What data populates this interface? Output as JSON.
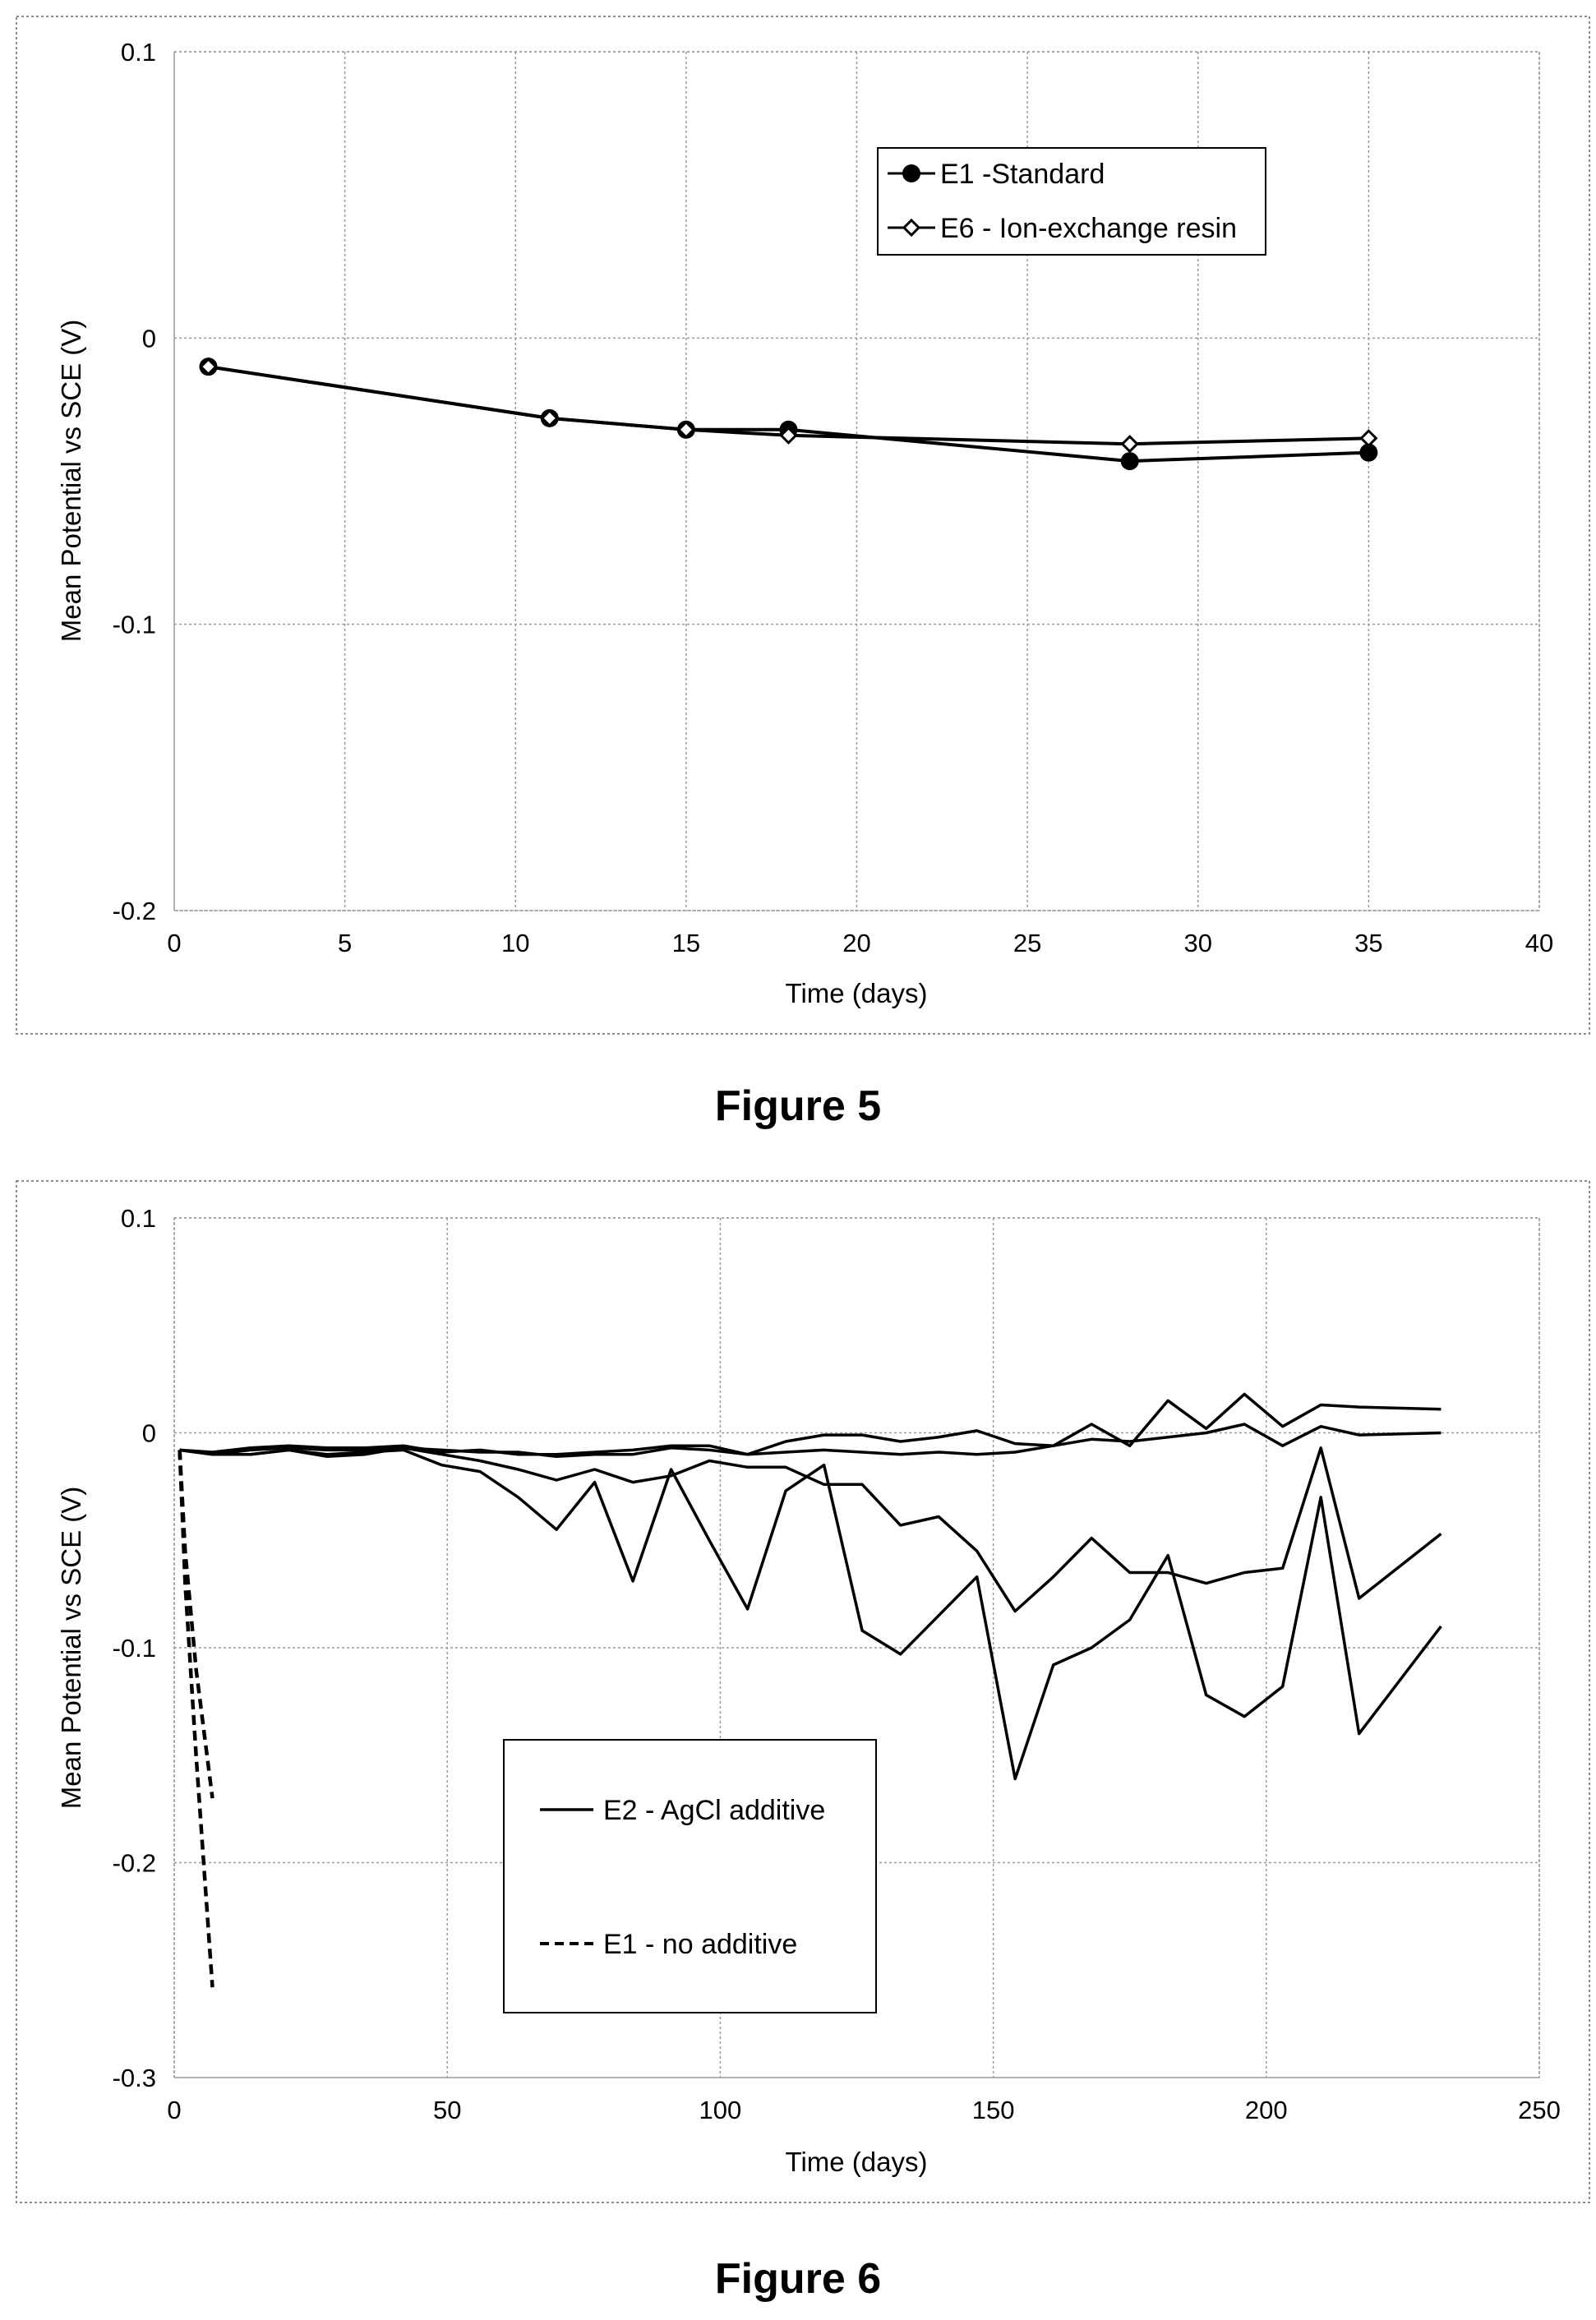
{
  "figures": [
    {
      "caption": "Figure 5"
    },
    {
      "caption": "Figure 6"
    }
  ],
  "chart_data": [
    {
      "type": "line",
      "xlabel": "Time (days)",
      "ylabel": "Mean Potential vs SCE (V)",
      "xlim": [
        0,
        40
      ],
      "ylim": [
        -0.2,
        0.1
      ],
      "xticks": [
        0,
        5,
        10,
        15,
        20,
        25,
        30,
        35,
        40
      ],
      "yticks": [
        0.1,
        0,
        -0.1,
        -0.2
      ],
      "xtick_labels": [
        "0",
        "5",
        "10",
        "15",
        "20",
        "25",
        "30",
        "35",
        "40"
      ],
      "ytick_labels": [
        "0.1",
        "0",
        "-0.1",
        "-0.2"
      ],
      "grid": true,
      "legend_position": "top-right",
      "series": [
        {
          "name": "E1 -Standard",
          "marker": "filled-circle",
          "color": "#000000",
          "x": [
            1,
            11,
            15,
            18,
            28,
            35
          ],
          "y": [
            -0.01,
            -0.028,
            -0.032,
            -0.032,
            -0.043,
            -0.04
          ]
        },
        {
          "name": "E6 - Ion-exchange resin",
          "marker": "open-diamond",
          "color": "#000000",
          "x": [
            1,
            11,
            15,
            18,
            28,
            35
          ],
          "y": [
            -0.01,
            -0.028,
            -0.032,
            -0.034,
            -0.037,
            -0.035
          ]
        }
      ]
    },
    {
      "type": "line",
      "xlabel": "Time (days)",
      "ylabel": "Mean Potential vs SCE (V)",
      "xlim": [
        0,
        250
      ],
      "ylim": [
        -0.3,
        0.1
      ],
      "xticks": [
        0,
        50,
        100,
        150,
        200,
        250
      ],
      "yticks": [
        0.1,
        0,
        -0.1,
        -0.2,
        -0.3
      ],
      "xtick_labels": [
        "0",
        "50",
        "100",
        "150",
        "200",
        "250"
      ],
      "ytick_labels": [
        "0.1",
        "0",
        "-0.1",
        "-0.2",
        "-0.3"
      ],
      "grid": true,
      "legend_position": "bottom-center",
      "legend": [
        {
          "name": "E2 - AgCl additive",
          "style": "solid"
        },
        {
          "name": "E1 - no additive",
          "style": "dashed"
        }
      ],
      "series": [
        {
          "group": "E2 - AgCl additive",
          "style": "solid",
          "x": [
            1,
            7,
            14,
            21,
            28,
            35,
            42,
            49,
            56,
            63,
            70,
            77,
            84,
            91,
            98,
            105,
            112,
            119,
            126,
            133,
            140,
            147,
            154,
            161,
            168,
            175,
            182,
            189,
            196,
            203,
            210,
            217,
            232
          ],
          "y": [
            -0.008,
            -0.009,
            -0.007,
            -0.006,
            -0.007,
            -0.007,
            -0.006,
            -0.009,
            -0.008,
            -0.01,
            -0.01,
            -0.009,
            -0.008,
            -0.006,
            -0.006,
            -0.01,
            -0.004,
            -0.001,
            -0.001,
            -0.004,
            -0.002,
            0.001,
            -0.005,
            -0.006,
            0.004,
            -0.006,
            0.015,
            0.002,
            0.018,
            0.003,
            0.013,
            0.012,
            0.011
          ]
        },
        {
          "group": "E2 - AgCl additive",
          "style": "solid",
          "x": [
            1,
            7,
            14,
            21,
            28,
            35,
            42,
            49,
            56,
            63,
            70,
            77,
            84,
            91,
            98,
            105,
            112,
            119,
            126,
            133,
            140,
            147,
            154,
            161,
            168,
            175,
            182,
            189,
            196,
            203,
            210,
            217,
            232
          ],
          "y": [
            -0.008,
            -0.01,
            -0.008,
            -0.007,
            -0.008,
            -0.008,
            -0.007,
            -0.008,
            -0.009,
            -0.009,
            -0.011,
            -0.01,
            -0.01,
            -0.007,
            -0.008,
            -0.01,
            -0.009,
            -0.008,
            -0.009,
            -0.01,
            -0.009,
            -0.01,
            -0.009,
            -0.006,
            -0.003,
            -0.004,
            -0.002,
            0.0,
            0.004,
            -0.006,
            0.003,
            -0.001,
            0.0
          ]
        },
        {
          "group": "E2 - AgCl additive",
          "style": "solid",
          "x": [
            1,
            7,
            14,
            21,
            28,
            35,
            42,
            49,
            56,
            63,
            70,
            77,
            84,
            91,
            98,
            105,
            112,
            119,
            126,
            133,
            140,
            147,
            154,
            161,
            168,
            175,
            182,
            189,
            196,
            203,
            210,
            217,
            232
          ],
          "y": [
            -0.008,
            -0.01,
            -0.01,
            -0.008,
            -0.011,
            -0.01,
            -0.007,
            -0.01,
            -0.013,
            -0.017,
            -0.022,
            -0.017,
            -0.023,
            -0.02,
            -0.013,
            -0.016,
            -0.016,
            -0.024,
            -0.024,
            -0.043,
            -0.039,
            -0.055,
            -0.083,
            -0.067,
            -0.049,
            -0.065,
            -0.065,
            -0.07,
            -0.065,
            -0.063,
            -0.007,
            -0.077,
            -0.047
          ]
        },
        {
          "group": "E2 - AgCl additive",
          "style": "solid",
          "x": [
            1,
            7,
            14,
            21,
            28,
            35,
            42,
            49,
            56,
            63,
            70,
            77,
            84,
            91,
            98,
            105,
            112,
            119,
            126,
            133,
            140,
            147,
            154,
            161,
            168,
            175,
            182,
            189,
            196,
            203,
            210,
            217,
            232
          ],
          "y": [
            -0.008,
            -0.01,
            -0.01,
            -0.008,
            -0.01,
            -0.009,
            -0.008,
            -0.015,
            -0.018,
            -0.03,
            -0.045,
            -0.023,
            -0.069,
            -0.017,
            -0.05,
            -0.082,
            -0.027,
            -0.015,
            -0.092,
            -0.103,
            -0.085,
            -0.067,
            -0.161,
            -0.108,
            -0.1,
            -0.087,
            -0.057,
            -0.122,
            -0.132,
            -0.118,
            -0.03,
            -0.14,
            -0.09
          ]
        },
        {
          "group": "E1 - no additive",
          "style": "dashed",
          "x": [
            1,
            2,
            4,
            7
          ],
          "y": [
            -0.008,
            -0.055,
            -0.11,
            -0.17
          ]
        },
        {
          "group": "E1 - no additive",
          "style": "dashed",
          "x": [
            1,
            2,
            4,
            7
          ],
          "y": [
            -0.008,
            -0.07,
            -0.15,
            -0.258
          ]
        }
      ]
    }
  ]
}
